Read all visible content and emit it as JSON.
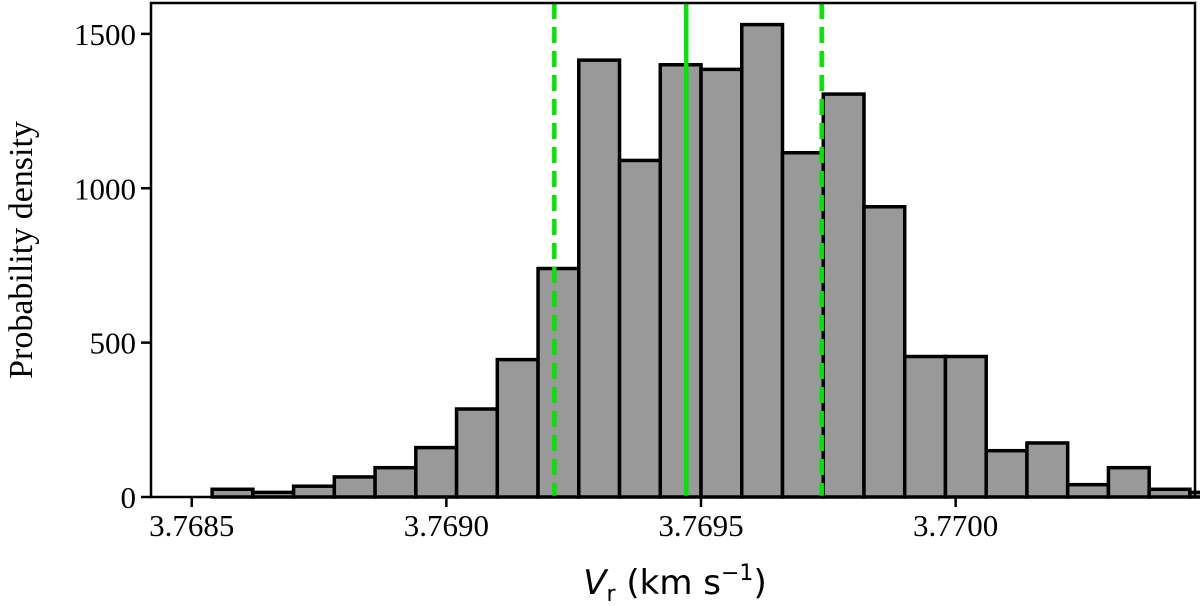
{
  "chart_data": {
    "type": "bar",
    "xlabel_symbol": "V",
    "xlabel_subscript": "r",
    "xlabel_unit_prefix": " (km s",
    "xlabel_unit_exponent": "−1",
    "xlabel_unit_suffix": ")",
    "ylabel": "Probability density",
    "xlim": [
      3.76842,
      3.77047
    ],
    "ylim": [
      0,
      1600
    ],
    "xticks": [
      {
        "value": 3.7685,
        "label": "3.7685"
      },
      {
        "value": 3.769,
        "label": "3.7690"
      },
      {
        "value": 3.7695,
        "label": "3.7695"
      },
      {
        "value": 3.77,
        "label": "3.7700"
      }
    ],
    "yticks": [
      {
        "value": 0,
        "label": "0"
      },
      {
        "value": 500,
        "label": "500"
      },
      {
        "value": 1000,
        "label": "1000"
      },
      {
        "value": 1500,
        "label": "1500"
      }
    ],
    "bins": [
      {
        "x0": 3.76854,
        "x1": 3.76862,
        "value": 25
      },
      {
        "x0": 3.76862,
        "x1": 3.7687,
        "value": 15
      },
      {
        "x0": 3.7687,
        "x1": 3.76878,
        "value": 35
      },
      {
        "x0": 3.76878,
        "x1": 3.76886,
        "value": 65
      },
      {
        "x0": 3.76886,
        "x1": 3.76894,
        "value": 95
      },
      {
        "x0": 3.76894,
        "x1": 3.76902,
        "value": 160
      },
      {
        "x0": 3.76902,
        "x1": 3.7691,
        "value": 285
      },
      {
        "x0": 3.7691,
        "x1": 3.76918,
        "value": 445
      },
      {
        "x0": 3.76918,
        "x1": 3.76926,
        "value": 740
      },
      {
        "x0": 3.76926,
        "x1": 3.76934,
        "value": 1415
      },
      {
        "x0": 3.76934,
        "x1": 3.76942,
        "value": 1090
      },
      {
        "x0": 3.76942,
        "x1": 3.7695,
        "value": 1400
      },
      {
        "x0": 3.7695,
        "x1": 3.76958,
        "value": 1385
      },
      {
        "x0": 3.76958,
        "x1": 3.76966,
        "value": 1530
      },
      {
        "x0": 3.76966,
        "x1": 3.76974,
        "value": 1115
      },
      {
        "x0": 3.76974,
        "x1": 3.76982,
        "value": 1305
      },
      {
        "x0": 3.76982,
        "x1": 3.7699,
        "value": 940
      },
      {
        "x0": 3.7699,
        "x1": 3.76998,
        "value": 455
      },
      {
        "x0": 3.76998,
        "x1": 3.77006,
        "value": 455
      },
      {
        "x0": 3.77006,
        "x1": 3.77014,
        "value": 150
      },
      {
        "x0": 3.77014,
        "x1": 3.77022,
        "value": 175
      },
      {
        "x0": 3.77022,
        "x1": 3.7703,
        "value": 40
      },
      {
        "x0": 3.7703,
        "x1": 3.77038,
        "value": 95
      },
      {
        "x0": 3.77038,
        "x1": 3.77046,
        "value": 25
      },
      {
        "x0": 3.77046,
        "x1": 3.77054,
        "value": 15
      }
    ],
    "vlines": [
      {
        "x": 3.769471,
        "style": "solid",
        "color": "#00e600"
      },
      {
        "x": 3.769212,
        "style": "dashed",
        "color": "#00e600"
      },
      {
        "x": 3.769737,
        "style": "dashed",
        "color": "#00e600"
      }
    ],
    "bar_color": "#999999",
    "grid": false
  }
}
